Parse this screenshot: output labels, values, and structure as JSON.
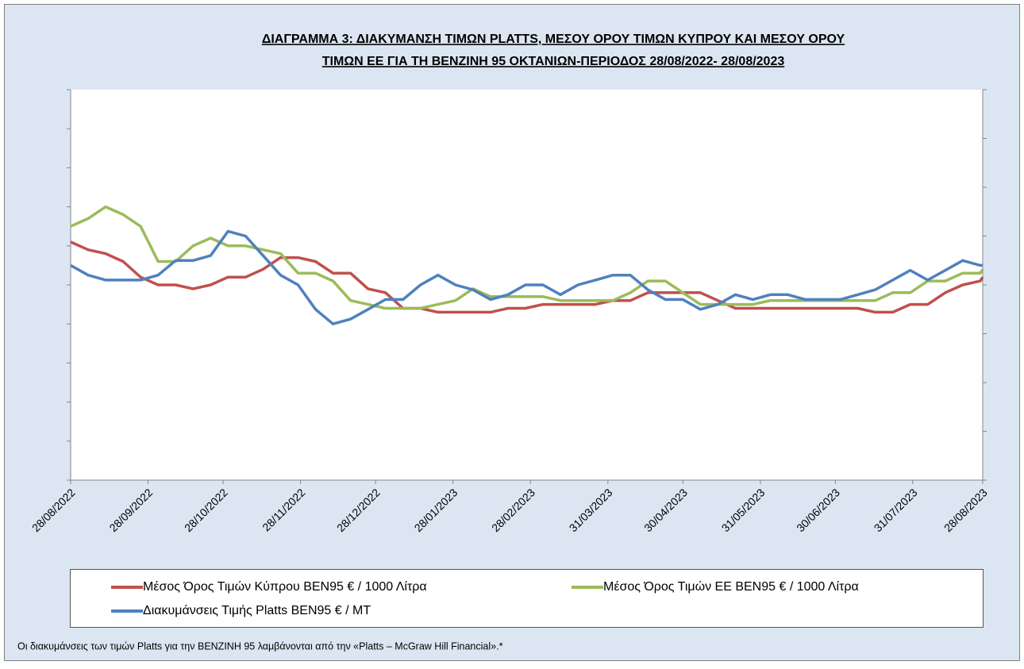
{
  "chart_data": {
    "type": "line",
    "title": [
      "ΔΙΑΓΡΑΜΜΑ 3: ΔΙΑΚΥΜΑΝΣΗ ΤΙΜΩΝ PLATTS, ΜΕΣΟΥ ΟΡΟΥ ΤΙΜΩΝ ΚΥΠΡΟΥ ΚΑΙ ΜΕΣΟΥ ΟΡΟΥ",
      "ΤΙΜΩΝ ΕΕ ΓΙΑ ΤΗ ΒΕΝΖΙΝΗ 95 ΟΚΤΑΝΙΩΝ-ΠΕΡΙΟΔΟΣ  28/08/2022- 28/08/2023"
    ],
    "x": [
      "28/08/2022",
      "04/09/2022",
      "11/09/2022",
      "18/09/2022",
      "25/09/2022",
      "02/10/2022",
      "09/10/2022",
      "16/10/2022",
      "23/10/2022",
      "30/10/2022",
      "06/11/2022",
      "13/11/2022",
      "20/11/2022",
      "27/11/2022",
      "04/12/2022",
      "11/12/2022",
      "18/12/2022",
      "25/12/2022",
      "01/01/2023",
      "08/01/2023",
      "15/01/2023",
      "22/01/2023",
      "29/01/2023",
      "05/02/2023",
      "12/02/2023",
      "19/02/2023",
      "26/02/2023",
      "05/03/2023",
      "12/03/2023",
      "19/03/2023",
      "26/03/2023",
      "02/04/2023",
      "09/04/2023",
      "16/04/2023",
      "23/04/2023",
      "30/04/2023",
      "07/05/2023",
      "14/05/2023",
      "21/05/2023",
      "28/05/2023",
      "04/06/2023",
      "11/06/2023",
      "18/06/2023",
      "25/06/2023",
      "02/07/2023",
      "09/07/2023",
      "16/07/2023",
      "23/07/2023",
      "30/07/2023",
      "06/08/2023",
      "13/08/2023",
      "20/08/2023",
      "27/08/2023",
      "28/08/2023"
    ],
    "xlim": [
      "28/08/2022",
      "28/08/2023"
    ],
    "xticks": [
      "28/08/2022",
      "28/09/2022",
      "28/10/2022",
      "28/11/2022",
      "28/12/2022",
      "28/01/2023",
      "28/02/2023",
      "31/03/2023",
      "30/04/2023",
      "31/05/2023",
      "30/06/2023",
      "31/07/2023",
      "28/08/2023"
    ],
    "ylim": [
      0,
      10
    ],
    "yticks": [
      0,
      1,
      2,
      3,
      4,
      5,
      6,
      7,
      8,
      9,
      10
    ],
    "y2lim": [
      0,
      8
    ],
    "y2ticks": [
      0,
      1,
      2,
      3,
      4,
      5,
      6,
      7,
      8
    ],
    "series": [
      {
        "name": "Μέσος Όρος Τιμών Κύπρου ΒΕΝ95 € / 1000 Λίτρα",
        "color": "#c0504d",
        "values": [
          6.1,
          5.9,
          5.8,
          5.6,
          5.2,
          5.0,
          5.0,
          4.9,
          5.0,
          5.2,
          5.2,
          5.4,
          5.7,
          5.7,
          5.6,
          5.3,
          5.3,
          4.9,
          4.8,
          4.4,
          4.4,
          4.3,
          4.3,
          4.3,
          4.3,
          4.4,
          4.4,
          4.5,
          4.5,
          4.5,
          4.5,
          4.6,
          4.6,
          4.8,
          4.8,
          4.8,
          4.8,
          4.6,
          4.4,
          4.4,
          4.4,
          4.4,
          4.4,
          4.4,
          4.4,
          4.4,
          4.3,
          4.3,
          4.5,
          4.5,
          4.8,
          5.0,
          5.1,
          5.2
        ]
      },
      {
        "name": "Μέσος Όρος Τιμών ΕΕ ΒΕΝ95 € / 1000 Λίτρα",
        "color": "#9bbb59",
        "values": [
          6.5,
          6.7,
          7.0,
          6.8,
          6.5,
          5.6,
          5.6,
          6.0,
          6.2,
          6.0,
          6.0,
          5.9,
          5.8,
          5.3,
          5.3,
          5.1,
          4.6,
          4.5,
          4.4,
          4.4,
          4.4,
          4.5,
          4.6,
          4.9,
          4.7,
          4.7,
          4.7,
          4.7,
          4.6,
          4.6,
          4.6,
          4.6,
          4.8,
          5.1,
          5.1,
          4.8,
          4.5,
          4.5,
          4.5,
          4.5,
          4.6,
          4.6,
          4.6,
          4.6,
          4.6,
          4.6,
          4.6,
          4.8,
          4.8,
          5.1,
          5.1,
          5.3,
          5.3,
          5.4
        ]
      },
      {
        "name": "Διακυμάνσεις Τιμής Platts ΒΕΝ95 € / MT",
        "color": "#4f81bd",
        "axis": "y2",
        "values": [
          4.4,
          4.2,
          4.1,
          4.1,
          4.1,
          4.2,
          4.5,
          4.5,
          4.6,
          5.1,
          5.0,
          4.6,
          4.2,
          4.0,
          3.5,
          3.2,
          3.3,
          3.5,
          3.7,
          3.7,
          4.0,
          4.2,
          4.0,
          3.9,
          3.7,
          3.8,
          4.0,
          4.0,
          3.8,
          4.0,
          4.1,
          4.2,
          4.2,
          3.9,
          3.7,
          3.7,
          3.5,
          3.6,
          3.8,
          3.7,
          3.8,
          3.8,
          3.7,
          3.7,
          3.7,
          3.8,
          3.9,
          4.1,
          4.3,
          4.1,
          4.3,
          4.5,
          4.4,
          4.4
        ]
      }
    ],
    "footnote": "Οι διακυμάνσεις των τιμών Platts για την ΒΕΝΖΙΝΗ 95 λαμβάνονται από την «Platts – McGraw Hill Financial».*"
  }
}
